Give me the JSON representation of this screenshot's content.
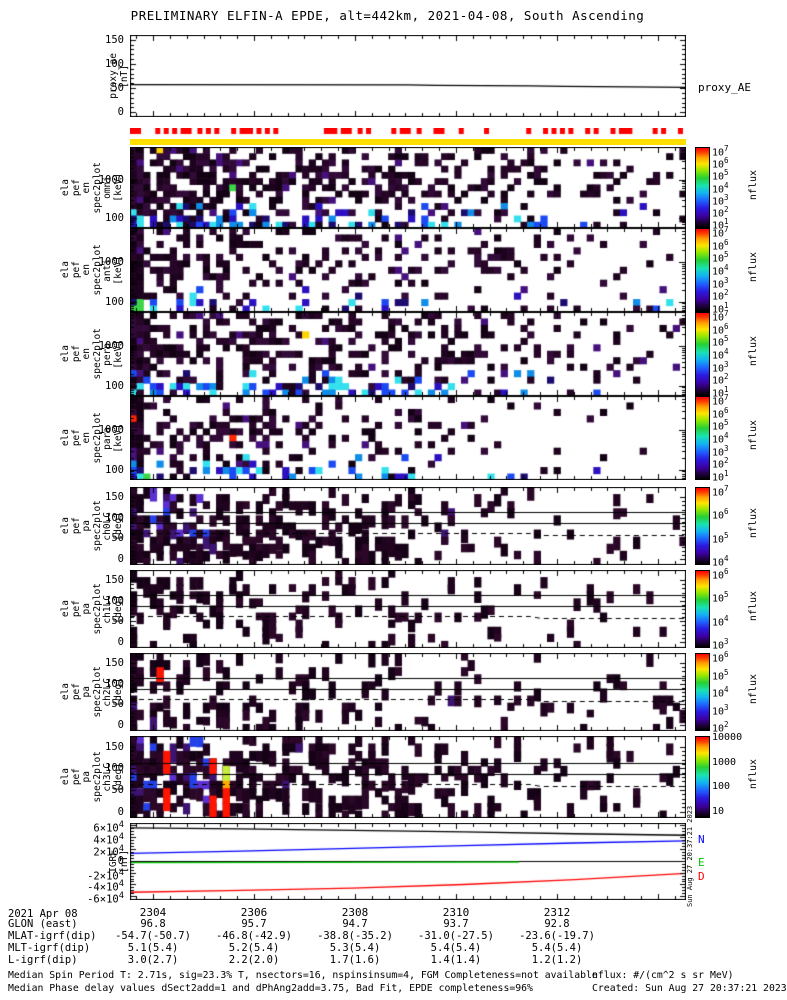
{
  "title": "PRELIMINARY ELFIN-A EPDE, alt=442km, 2021-04-08, South Ascending",
  "colors": {
    "flag_red": "#ff0000",
    "quality_yellow": "#ffdf00",
    "igrf_n": "#0000ff",
    "igrf_e": "#00c800",
    "igrf_d": "#ff0000",
    "igrf_total": "#000000"
  },
  "chart_data": [
    {
      "id": "proxy_ae",
      "type": "line",
      "label_lines": [
        "proxy_ae",
        "[nT]"
      ],
      "right_labels": [
        {
          "text": "proxy_AE",
          "color": "#000000",
          "f": 0.62
        }
      ],
      "ylim": [
        -10,
        160
      ],
      "yticks": [
        {
          "v": 0,
          "label": "0"
        },
        {
          "v": 50,
          "label": "50"
        },
        {
          "v": 100,
          "label": "100"
        },
        {
          "v": 150,
          "label": "150"
        }
      ],
      "series": [
        {
          "name": "proxy_AE",
          "color": "#000000",
          "points": [
            [
              0,
              57
            ],
            [
              0.5,
              56.5
            ],
            [
              0.55,
              55.5
            ],
            [
              0.72,
              54.5
            ],
            [
              0.78,
              53.5
            ],
            [
              0.9,
              52.5
            ],
            [
              1,
              51.5
            ]
          ]
        }
      ]
    },
    {
      "id": "en_omni",
      "type": "heatmap",
      "style": "energy",
      "label_lines": [
        "ela",
        "pef",
        "en",
        "spec2plot",
        "omni",
        "[keV]"
      ],
      "yscale": "log",
      "ylim": [
        55,
        7100
      ],
      "yticks": [
        {
          "v": 100,
          "label": "100"
        },
        {
          "v": 1000,
          "label": "1000"
        }
      ],
      "colorbar": {
        "ticks": [
          "10^7",
          "10^6",
          "10^5",
          "10^4",
          "10^3",
          "10^2",
          "10^1"
        ],
        "label": "nflux"
      },
      "mosaic": {
        "seed": 11,
        "densLeft": 0.66,
        "densRight": 0.24,
        "blueBand": true,
        "bright": 0.012
      }
    },
    {
      "id": "en_anti",
      "type": "heatmap",
      "style": "energy",
      "label_lines": [
        "ela",
        "pef",
        "en",
        "spec2plot",
        "anti",
        "[keV]"
      ],
      "yscale": "log",
      "ylim": [
        55,
        7100
      ],
      "yticks": [
        {
          "v": 100,
          "label": "100"
        },
        {
          "v": 1000,
          "label": "1000"
        }
      ],
      "colorbar": {
        "ticks": [
          "10^7",
          "10^6",
          "10^5",
          "10^4",
          "10^3",
          "10^2",
          "10^1"
        ],
        "label": "nflux"
      },
      "mosaic": {
        "seed": 22,
        "densLeft": 0.42,
        "densRight": 0.07,
        "blueBand": true,
        "bright": 0.004
      }
    },
    {
      "id": "en_perp",
      "type": "heatmap",
      "style": "energy",
      "label_lines": [
        "ela",
        "pef",
        "en",
        "spec2plot",
        "perp",
        "[keV]"
      ],
      "yscale": "log",
      "ylim": [
        55,
        7100
      ],
      "yticks": [
        {
          "v": 100,
          "label": "100"
        },
        {
          "v": 1000,
          "label": "1000"
        }
      ],
      "colorbar": {
        "ticks": [
          "10^7",
          "10^6",
          "10^5",
          "10^4",
          "10^3",
          "10^2",
          "10^1"
        ],
        "label": "nflux"
      },
      "mosaic": {
        "seed": 33,
        "densLeft": 0.55,
        "densRight": 0.16,
        "blueBand": true,
        "bright": 0.008
      }
    },
    {
      "id": "en_para",
      "type": "heatmap",
      "style": "energy",
      "label_lines": [
        "ela",
        "pef",
        "en",
        "spec2plot",
        "para",
        "[keV]"
      ],
      "yscale": "log",
      "ylim": [
        55,
        7100
      ],
      "yticks": [
        {
          "v": 100,
          "label": "100"
        },
        {
          "v": 1000,
          "label": "1000"
        }
      ],
      "colorbar": {
        "ticks": [
          "10^7",
          "10^6",
          "10^5",
          "10^4",
          "10^3",
          "10^2",
          "10^1"
        ],
        "label": "nflux"
      },
      "mosaic": {
        "seed": 44,
        "densLeft": 0.45,
        "densRight": 0.05,
        "blueBand": true,
        "bright": 0.01
      }
    },
    {
      "id": "pa_ch0LC",
      "type": "heatmap",
      "style": "pitch",
      "label_lines": [
        "ela",
        "pef",
        "pa",
        "spec2plot",
        "ch0LC",
        "[deg]"
      ],
      "ylim": [
        -15,
        175
      ],
      "yticks": [
        {
          "v": 0,
          "label": "0"
        },
        {
          "v": 50,
          "label": "50"
        },
        {
          "v": 100,
          "label": "100"
        },
        {
          "v": 150,
          "label": "150"
        }
      ],
      "guide_solid": [
        113,
        87
      ],
      "guide_dashed": [
        [
          0,
          63
        ],
        [
          0.72,
          63
        ],
        [
          0.74,
          58
        ],
        [
          1,
          58
        ]
      ],
      "colorbar": {
        "ticks": [
          "10^7",
          "10^6",
          "10^5",
          "10^4"
        ],
        "label": "nflux"
      },
      "mosaic": {
        "seed": 55,
        "densLeft": 0.58,
        "densRight": 0.06,
        "purpleLeft": true,
        "brightCols": []
      }
    },
    {
      "id": "pa_ch1LC",
      "type": "heatmap",
      "style": "pitch",
      "label_lines": [
        "ela",
        "pef",
        "pa",
        "spec2plot",
        "ch1LC",
        "[deg]"
      ],
      "ylim": [
        -15,
        175
      ],
      "yticks": [
        {
          "v": 0,
          "label": "0"
        },
        {
          "v": 50,
          "label": "50"
        },
        {
          "v": 100,
          "label": "100"
        },
        {
          "v": 150,
          "label": "150"
        }
      ],
      "guide_solid": [
        113,
        87
      ],
      "guide_dashed": [
        [
          0,
          63
        ],
        [
          0.72,
          63
        ],
        [
          0.74,
          58
        ],
        [
          1,
          58
        ]
      ],
      "colorbar": {
        "ticks": [
          "10^6",
          "10^5",
          "10^4",
          "10^3"
        ],
        "label": "nflux"
      },
      "mosaic": {
        "seed": 66,
        "densLeft": 0.3,
        "densRight": 0.05,
        "purpleLeft": false,
        "brightCols": []
      }
    },
    {
      "id": "pa_ch2LC",
      "type": "heatmap",
      "style": "pitch",
      "label_lines": [
        "ela",
        "pef",
        "pa",
        "spec2plot",
        "ch2LC",
        "[deg]"
      ],
      "ylim": [
        -15,
        175
      ],
      "yticks": [
        {
          "v": 0,
          "label": "0"
        },
        {
          "v": 50,
          "label": "50"
        },
        {
          "v": 100,
          "label": "100"
        },
        {
          "v": 150,
          "label": "150"
        }
      ],
      "guide_solid": [
        113,
        87
      ],
      "guide_dashed": [
        [
          0,
          63
        ],
        [
          0.72,
          63
        ],
        [
          0.74,
          58
        ],
        [
          1,
          58
        ]
      ],
      "colorbar": {
        "ticks": [
          "10^6",
          "10^5",
          "10^4",
          "10^3",
          "10^2"
        ],
        "label": "nflux"
      },
      "mosaic": {
        "seed": 77,
        "densLeft": 0.34,
        "densRight": 0.06,
        "purpleLeft": false,
        "brightCols": [
          {
            "col": 4,
            "rows": [
              2,
              3
            ],
            "color": "#ff1500"
          }
        ]
      }
    },
    {
      "id": "pa_ch3LC",
      "type": "heatmap",
      "style": "pitch",
      "label_lines": [
        "ela",
        "pef",
        "pa",
        "spec2plot",
        "ch3LC",
        "[deg]"
      ],
      "ylim": [
        -15,
        175
      ],
      "yticks": [
        {
          "v": 0,
          "label": "0"
        },
        {
          "v": 50,
          "label": "50"
        },
        {
          "v": 100,
          "label": "100"
        },
        {
          "v": 150,
          "label": "150"
        }
      ],
      "guide_solid": [
        113,
        87
      ],
      "guide_dashed": [
        [
          0,
          63
        ],
        [
          0.72,
          63
        ],
        [
          0.74,
          58
        ],
        [
          1,
          58
        ]
      ],
      "colorbar": {
        "ticks": [
          "10000",
          "1000",
          "100",
          "10"
        ],
        "label": "nflux"
      },
      "mosaic": {
        "seed": 88,
        "densLeft": 0.66,
        "densRight": 0.12,
        "purpleLeft": true,
        "brightCols": [
          {
            "col": 5,
            "rows": [
              2,
              3,
              4,
              7,
              8,
              9
            ],
            "color": "#ff1500"
          },
          {
            "col": 12,
            "rows": [
              3,
              4,
              8,
              9,
              10
            ],
            "color": "#ff1500"
          },
          {
            "col": 14,
            "rows": [
              4,
              5
            ],
            "color": "#c8ee3c"
          },
          {
            "col": 14,
            "rows": [
              6
            ],
            "color": "#ffaa00"
          },
          {
            "col": 14,
            "rows": [
              7,
              8,
              9,
              10
            ],
            "color": "#ff1500"
          }
        ]
      }
    },
    {
      "id": "igrf",
      "type": "line",
      "label_lines": [
        "IGRF",
        "[nT]"
      ],
      "right_labels": [
        {
          "text": "N",
          "color": "#0000ff",
          "f": 0.2
        },
        {
          "text": "E",
          "color": "#00c800",
          "f": 0.49
        },
        {
          "text": "D",
          "color": "#ff0000",
          "f": 0.67
        }
      ],
      "ylim": [
        -6.6,
        6.3
      ],
      "yticks": [
        {
          "v": 6,
          "label": "6×10^4"
        },
        {
          "v": 4,
          "label": "4×10^4"
        },
        {
          "v": 2,
          "label": "2×10^4"
        },
        {
          "v": 0,
          "label": "0"
        },
        {
          "v": -2,
          "label": "-2×10^4"
        },
        {
          "v": -4,
          "label": "-4×10^4"
        },
        {
          "v": -6,
          "label": "-6×10^4"
        }
      ],
      "zero_line": true,
      "series": [
        {
          "name": "total",
          "color": "#000000",
          "points": [
            [
              0,
              5.5
            ],
            [
              0.2,
              5.3
            ],
            [
              0.4,
              5.05
            ],
            [
              0.6,
              4.8
            ],
            [
              0.8,
              4.5
            ],
            [
              1,
              4.25
            ]
          ]
        },
        {
          "name": "N",
          "color": "#0000ff",
          "points": [
            [
              0,
              1.2
            ],
            [
              0.2,
              1.6
            ],
            [
              0.4,
              2.05
            ],
            [
              0.6,
              2.5
            ],
            [
              0.8,
              2.95
            ],
            [
              1,
              3.3
            ]
          ]
        },
        {
          "name": "E",
          "color": "#00c800",
          "points": [
            [
              0,
              -0.35
            ],
            [
              0.35,
              -0.3
            ],
            [
              0.7,
              -0.25
            ]
          ]
        },
        {
          "name": "D",
          "color": "#ff0000",
          "points": [
            [
              0,
              -5.3
            ],
            [
              0.2,
              -5.0
            ],
            [
              0.4,
              -4.6
            ],
            [
              0.6,
              -4.0
            ],
            [
              0.8,
              -3.2
            ],
            [
              1,
              -2.15
            ]
          ]
        }
      ]
    }
  ],
  "quality_bar": {
    "flag_seed": 7,
    "flag_color": "#ff0000",
    "bar_color": "#ffdf00"
  },
  "time_axis": {
    "date_label": "2021 Apr 08",
    "ticks": [
      {
        "label": "2304",
        "f": 0.0414
      },
      {
        "label": "2306",
        "f": 0.223
      },
      {
        "label": "2308",
        "f": 0.4047
      },
      {
        "label": "2310",
        "f": 0.5863
      },
      {
        "label": "2312",
        "f": 0.768
      }
    ]
  },
  "ephemeris": {
    "rows": [
      {
        "label": "GLON (east)",
        "values": [
          "96.8",
          "95.7",
          "94.7",
          "93.7",
          "92.8"
        ]
      },
      {
        "label": "MLAT-igrf(dip)",
        "values": [
          "-54.7(-50.7)",
          "-46.8(-42.9)",
          "-38.8(-35.2)",
          "-31.0(-27.5)",
          "-23.6(-19.7)"
        ]
      },
      {
        "label": "MLT-igrf(dip)",
        "values": [
          "5.1(5.4)",
          "5.2(5.4)",
          "5.3(5.4)",
          "5.4(5.4)",
          "5.4(5.4)"
        ]
      },
      {
        "label": "L-igrf(dip)",
        "values": [
          "3.0(2.7)",
          "2.2(2.0)",
          "1.7(1.6)",
          "1.4(1.4)",
          "1.2(1.2)"
        ]
      }
    ]
  },
  "footer": {
    "left": [
      "Median Spin Period T: 2.71s, sig=23.3% T, nsectors=16, nspinsinsum=4, FGM Completeness=not available",
      "Median Phase delay values dSect2add=1 and dPhAng2add=3.75, Bad Fit, EPDE completeness=96%"
    ],
    "right": [
      "nflux: #/(cm^2 s sr MeV)",
      "Created: Sun Aug 27 20:37:21 2023"
    ]
  },
  "created_vertical": "Sun Aug 27 20:37:21 2023"
}
